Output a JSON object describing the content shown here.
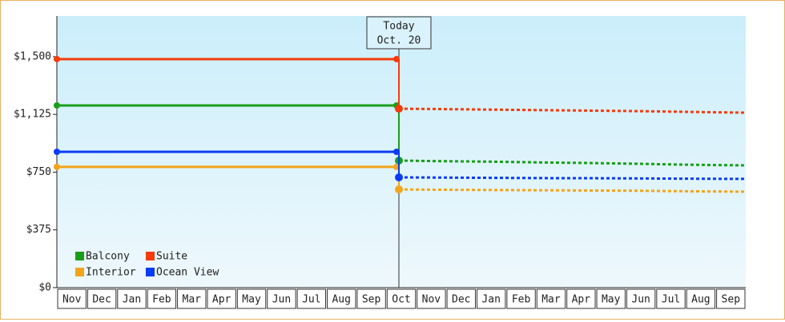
{
  "chart_data": {
    "type": "line",
    "categories": [
      "Nov",
      "Dec",
      "Jan",
      "Feb",
      "Mar",
      "Apr",
      "May",
      "Jun",
      "Jul",
      "Aug",
      "Sep",
      "Oct",
      "Nov",
      "Dec",
      "Jan",
      "Feb",
      "Mar",
      "Apr",
      "May",
      "Jun",
      "Jul",
      "Aug",
      "Sep"
    ],
    "today_index": 11,
    "annotation": [
      "Today",
      "Oct. 20"
    ],
    "series": [
      {
        "name": "Balcony",
        "color": "#1a9e1a",
        "values": [
          1183,
          1183,
          1183,
          1183,
          1183,
          1183,
          1183,
          1183,
          1183,
          1183,
          1183,
          825,
          822,
          820,
          818,
          815,
          812,
          810,
          807,
          804,
          800,
          797,
          794
        ]
      },
      {
        "name": "Suite",
        "color": "#f53b0c",
        "values": [
          1484,
          1484,
          1484,
          1484,
          1484,
          1484,
          1484,
          1484,
          1484,
          1484,
          1484,
          1162,
          1160,
          1158,
          1156,
          1154,
          1152,
          1150,
          1148,
          1146,
          1143,
          1140,
          1136
        ]
      },
      {
        "name": "Interior",
        "color": "#f2a51a",
        "values": [
          784,
          784,
          784,
          784,
          784,
          784,
          784,
          784,
          784,
          784,
          784,
          638,
          636,
          635,
          634,
          633,
          632,
          631,
          630,
          629,
          627,
          625,
          623
        ]
      },
      {
        "name": "Ocean View",
        "color": "#0a3cf5",
        "values": [
          882,
          882,
          882,
          882,
          882,
          882,
          882,
          882,
          882,
          882,
          882,
          716,
          715,
          714,
          713,
          712,
          711,
          711,
          710,
          709,
          708,
          707,
          706
        ]
      }
    ],
    "ylim": [
      0,
      1764
    ],
    "yticks": [
      {
        "value": 0,
        "label": "$0"
      },
      {
        "value": 375,
        "label": "$375"
      },
      {
        "value": 750,
        "label": "$750"
      },
      {
        "value": 1125,
        "label": "$1,125"
      },
      {
        "value": 1500,
        "label": "$1,500"
      }
    ]
  }
}
